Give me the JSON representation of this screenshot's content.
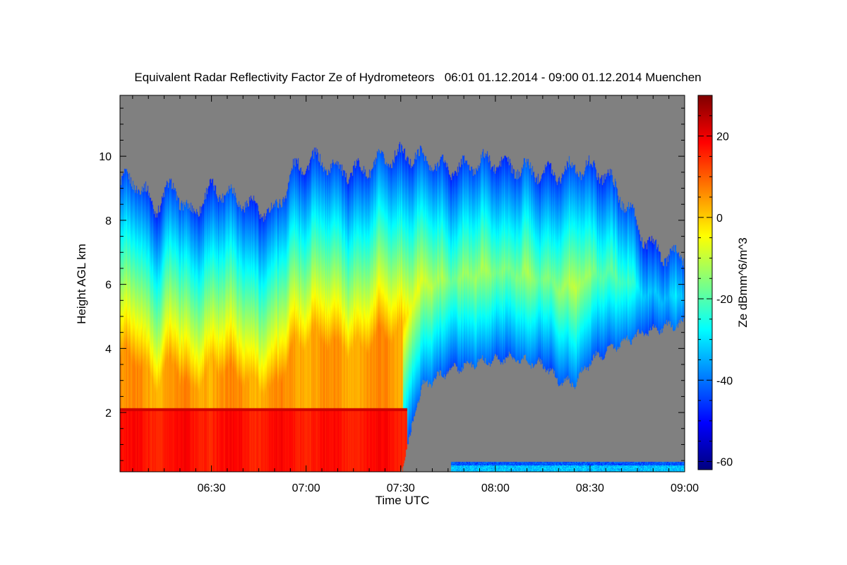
{
  "chart_data": {
    "type": "heatmap",
    "title": "Equivalent Radar Reflectivity Factor Ze of Hydrometeors   06:01 01.12.2014 - 09:00 01.12.2014 Muenchen",
    "xlabel": "Time UTC",
    "ylabel": "Height AGL km",
    "colorbar_label": "Ze dBmm^6/m^3",
    "x_range_minutes_utc": [
      361,
      540
    ],
    "x_ticks": [
      {
        "minute": 390,
        "label": "06:30"
      },
      {
        "minute": 420,
        "label": "07:00"
      },
      {
        "minute": 450,
        "label": "07:30"
      },
      {
        "minute": 480,
        "label": "08:00"
      },
      {
        "minute": 510,
        "label": "08:30"
      },
      {
        "minute": 540,
        "label": "09:00"
      }
    ],
    "y_range_km": [
      0.15,
      11.9
    ],
    "y_ticks": [
      {
        "value": 2,
        "label": "2"
      },
      {
        "value": 4,
        "label": "4"
      },
      {
        "value": 6,
        "label": "6"
      },
      {
        "value": 8,
        "label": "8"
      },
      {
        "value": 10,
        "label": "10"
      }
    ],
    "color_range": [
      -62,
      30
    ],
    "colorbar_ticks": [
      {
        "value": 20,
        "label": "20"
      },
      {
        "value": 0,
        "label": "0"
      },
      {
        "value": -20,
        "label": "-20"
      },
      {
        "value": -40,
        "label": "-40"
      },
      {
        "value": -60,
        "label": "-60"
      }
    ],
    "colormap": "jet",
    "no_data_color": "#808080",
    "echo_top_km": [
      [
        361,
        9.0
      ],
      [
        366,
        9.1
      ],
      [
        372,
        8.5
      ],
      [
        378,
        9.3
      ],
      [
        383,
        8.2
      ],
      [
        390,
        8.8
      ],
      [
        400,
        8.6
      ],
      [
        410,
        8.4
      ],
      [
        416,
        9.5
      ],
      [
        422,
        9.7
      ],
      [
        430,
        9.6
      ],
      [
        445,
        9.9
      ],
      [
        460,
        9.8
      ],
      [
        475,
        9.8
      ],
      [
        485,
        9.5
      ],
      [
        495,
        9.7
      ],
      [
        505,
        9.6
      ],
      [
        515,
        9.3
      ],
      [
        522,
        8.5
      ],
      [
        528,
        7.5
      ],
      [
        534,
        6.9
      ],
      [
        540,
        6.7
      ]
    ],
    "echo_base_km": [
      [
        361,
        0.15
      ],
      [
        450,
        0.15
      ],
      [
        453,
        1.2
      ],
      [
        455,
        2.3
      ],
      [
        457,
        2.8
      ],
      [
        465,
        3.3
      ],
      [
        475,
        3.6
      ],
      [
        485,
        3.7
      ],
      [
        495,
        3.5
      ],
      [
        500,
        3.0
      ],
      [
        505,
        2.9
      ],
      [
        510,
        3.6
      ],
      [
        520,
        4.2
      ],
      [
        530,
        4.6
      ],
      [
        540,
        4.8
      ]
    ],
    "ground_clutter_km": {
      "x_range": [
        466,
        540
      ],
      "top": 0.45
    },
    "enhanced_layer_km": {
      "x_range": [
        361,
        452
      ],
      "top": 2.05,
      "ze_dbz": 20
    }
  }
}
